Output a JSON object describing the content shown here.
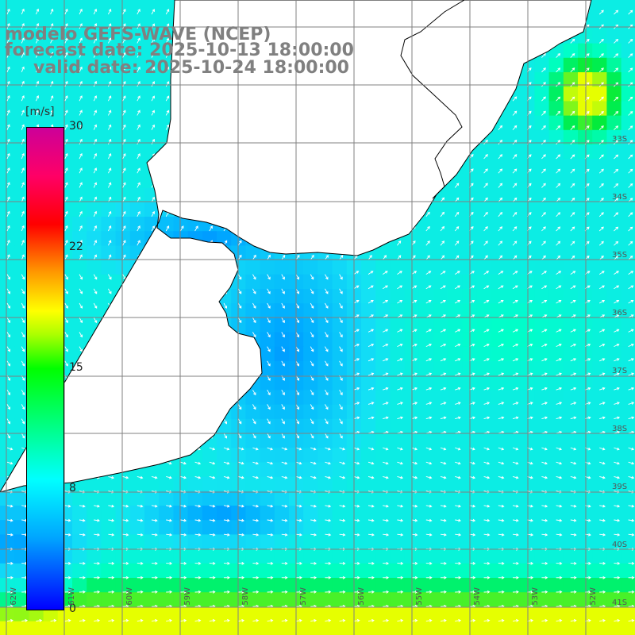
{
  "title": {
    "line1": "modelo GEFS-WAVE (NCEP)",
    "line2": "forecast date: 2025-10-13 18:00:00",
    "line3": "valid date: 2025-10-24 18:00:00"
  },
  "colorbar": {
    "unit": "[m/s]",
    "ticks": [
      "30",
      "22",
      "15",
      "8",
      "0"
    ],
    "min": 0,
    "max": 30,
    "colors": [
      "#0000ff",
      "#00a6ff",
      "#00ffff",
      "#00ff00",
      "#ffff00",
      "#ff0000",
      "#cc0099"
    ]
  },
  "lat_labels": [
    "33S",
    "34S",
    "35S",
    "36S",
    "37S",
    "38S",
    "39S",
    "40S",
    "41S"
  ],
  "lon_labels": [
    "62W",
    "61W",
    "60W",
    "59W",
    "58W",
    "57W",
    "56W",
    "55W",
    "54W",
    "53W",
    "52W",
    "51W"
  ],
  "land_color": "#ffffff",
  "coast_color": "#000000"
}
